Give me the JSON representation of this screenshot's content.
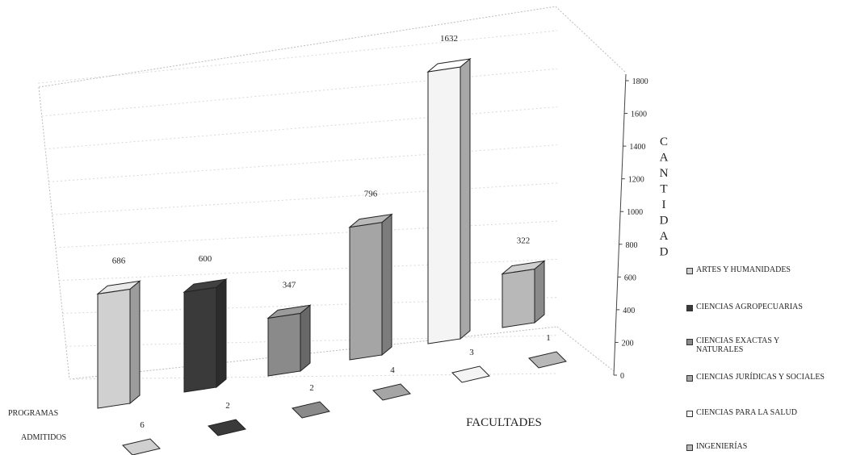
{
  "chart_data": {
    "type": "bar",
    "subtype": "3d-column",
    "xlabel": "FACULTADES",
    "ylabel": "CANTIDAD",
    "ylim": [
      0,
      1800
    ],
    "yticks": [
      0,
      200,
      400,
      600,
      800,
      1000,
      1200,
      1400,
      1600,
      1800
    ],
    "grid": true,
    "legend_position": "right",
    "rows": [
      "PROGRAMAS",
      "ADMITIDOS"
    ],
    "categories": [
      "ARTES Y HUMANIDADES",
      "CIENCIAS AGROPECUARIAS",
      "CIENCIAS EXACTAS Y NATURALES",
      "CIENCIAS JURÍDICAS Y SOCIALES",
      "CIENCIAS PARA LA SALUD",
      "INGENIERÍAS"
    ],
    "colors": [
      "#d0d0d0",
      "#3a3a3a",
      "#8a8a8a",
      "#a5a5a5",
      "#f4f4f4",
      "#b8b8b8"
    ],
    "series": [
      {
        "name": "ADMITIDOS",
        "values": [
          686,
          600,
          347,
          796,
          1632,
          322
        ]
      },
      {
        "name": "PROGRAMAS",
        "values": [
          6,
          2,
          2,
          4,
          3,
          1
        ]
      }
    ]
  }
}
